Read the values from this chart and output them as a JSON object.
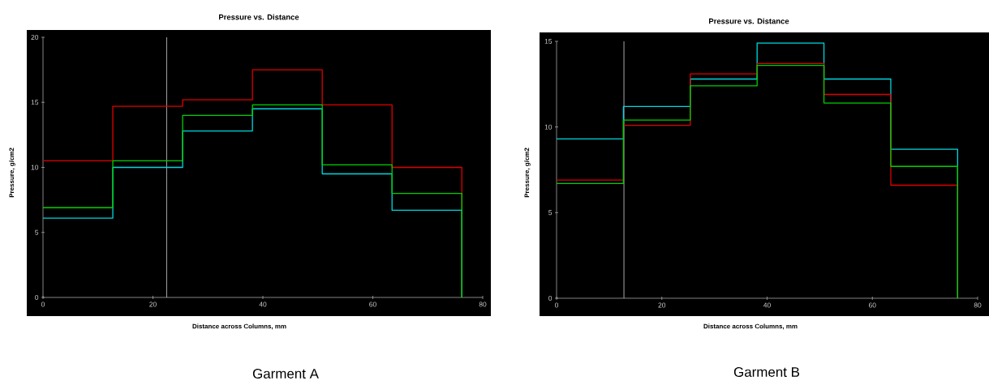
{
  "chart_data": [
    {
      "type": "step",
      "title": "Pressure vs. Distance",
      "xlabel": "Distance across Columns, mm",
      "ylabel": "Pressure, g/cm2",
      "annotations": [
        "Garment A"
      ],
      "x": [
        0,
        12.7,
        25.4,
        38.1,
        50.8,
        63.5,
        76.2,
        76.2
      ],
      "series": [
        {
          "color": "#e00000",
          "values": [
            10.5,
            14.7,
            15.2,
            17.5,
            14.8,
            10.0,
            10.0,
            0
          ]
        },
        {
          "color": "#00d8e0",
          "values": [
            6.1,
            10.0,
            12.8,
            14.5,
            9.5,
            6.7,
            6.7,
            0
          ]
        },
        {
          "color": "#00d000",
          "values": [
            6.9,
            10.5,
            14.0,
            14.8,
            10.2,
            8.0,
            8.0,
            0
          ]
        }
      ],
      "xlim": [
        0,
        80
      ],
      "xticks": [
        0,
        20,
        40,
        60,
        80
      ],
      "ylim": [
        0,
        20
      ],
      "yticks": [
        0,
        5,
        10,
        15,
        20
      ],
      "ref_lines": [
        {
          "axis": "x",
          "value": 22.5,
          "color": "#d0d0d0"
        }
      ]
    },
    {
      "type": "step",
      "title": "Pressure vs. Distance",
      "xlabel": "Distance across Columns, mm",
      "ylabel": "Pressure, g/cm2",
      "annotations": [
        "Garment B"
      ],
      "x": [
        0,
        12.7,
        25.4,
        38.1,
        50.8,
        63.5,
        76.2,
        76.2
      ],
      "series": [
        {
          "color": "#00d8e0",
          "values": [
            9.3,
            11.2,
            12.8,
            14.9,
            12.8,
            8.7,
            8.7,
            0
          ]
        },
        {
          "color": "#e00000",
          "values": [
            6.9,
            10.1,
            13.1,
            13.7,
            11.9,
            6.6,
            6.6,
            0
          ]
        },
        {
          "color": "#00d000",
          "values": [
            6.7,
            10.4,
            12.4,
            13.6,
            11.4,
            7.7,
            7.7,
            0
          ]
        }
      ],
      "xlim": [
        0,
        80
      ],
      "xticks": [
        0,
        20,
        40,
        60,
        80
      ],
      "ylim": [
        0,
        15
      ],
      "yticks": [
        0,
        5,
        10,
        15
      ],
      "ref_lines": [
        {
          "axis": "x",
          "value": 12.8,
          "color": "#d0d0d0"
        }
      ]
    }
  ]
}
